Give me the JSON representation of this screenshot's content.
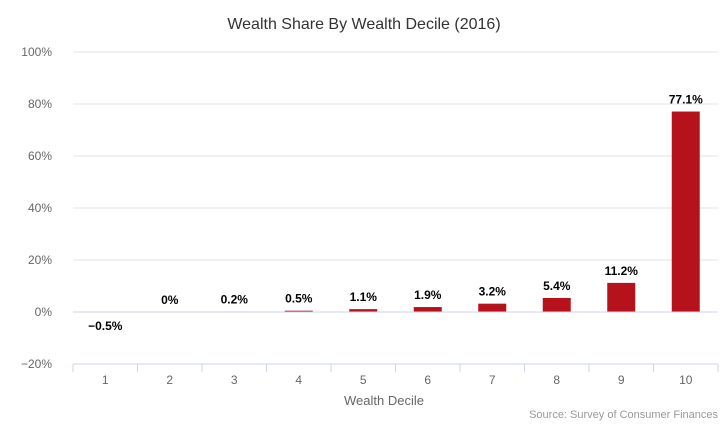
{
  "chart_data": {
    "type": "bar",
    "title": "Wealth Share By Wealth Decile (2016)",
    "xlabel": "Wealth Decile",
    "ylabel": "",
    "categories": [
      "1",
      "2",
      "3",
      "4",
      "5",
      "6",
      "7",
      "8",
      "9",
      "10"
    ],
    "values": [
      -0.5,
      0,
      0.2,
      0.5,
      1.1,
      1.9,
      3.2,
      5.4,
      11.2,
      77.1
    ],
    "data_labels": [
      "−0.5%",
      "0%",
      "0.2%",
      "0.5%",
      "1.1%",
      "1.9%",
      "3.2%",
      "5.4%",
      "11.2%",
      "77.1%"
    ],
    "ylim": [
      -20,
      100
    ],
    "yticks": [
      -20,
      0,
      20,
      40,
      60,
      80,
      100
    ],
    "ytick_labels": [
      "−20%",
      "0%",
      "20%",
      "40%",
      "60%",
      "80%",
      "100%"
    ],
    "grid": true,
    "legend": "none",
    "bar_color": "#b5121b",
    "source": "Source: Survey of Consumer Finances"
  }
}
